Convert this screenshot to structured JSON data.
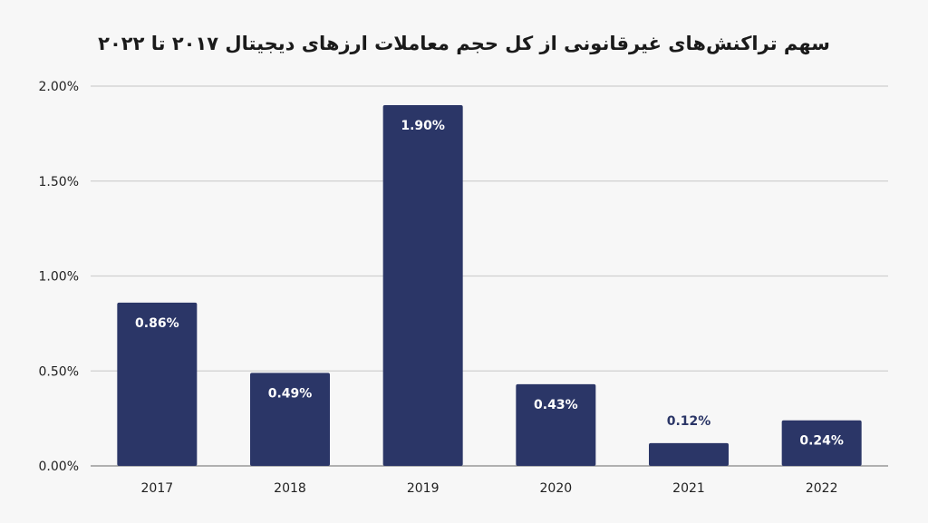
{
  "chart_data": {
    "type": "bar",
    "title": "سهم تراکنش‌های غیرقانونی از کل حجم معاملات ارزهای دیجیتال ۲۰۱۷ تا ۲۰۲۲",
    "categories": [
      "2017",
      "2018",
      "2019",
      "2020",
      "2021",
      "2022"
    ],
    "values": [
      0.86,
      0.49,
      1.9,
      0.43,
      0.12,
      0.24
    ],
    "data_labels": [
      "0.86%",
      "0.49%",
      "1.90%",
      "0.43%",
      "0.12%",
      "0.24%"
    ],
    "y_ticks": [
      0,
      0.5,
      1.0,
      1.5,
      2.0
    ],
    "y_tick_labels": [
      "0.00%",
      "0.50%",
      "1.00%",
      "1.50%",
      "2.00%"
    ],
    "ylim": [
      0,
      2.0
    ],
    "xlabel": "",
    "ylabel": "",
    "grid": true,
    "bar_color": "#2b3667",
    "background": "#f7f7f7"
  }
}
